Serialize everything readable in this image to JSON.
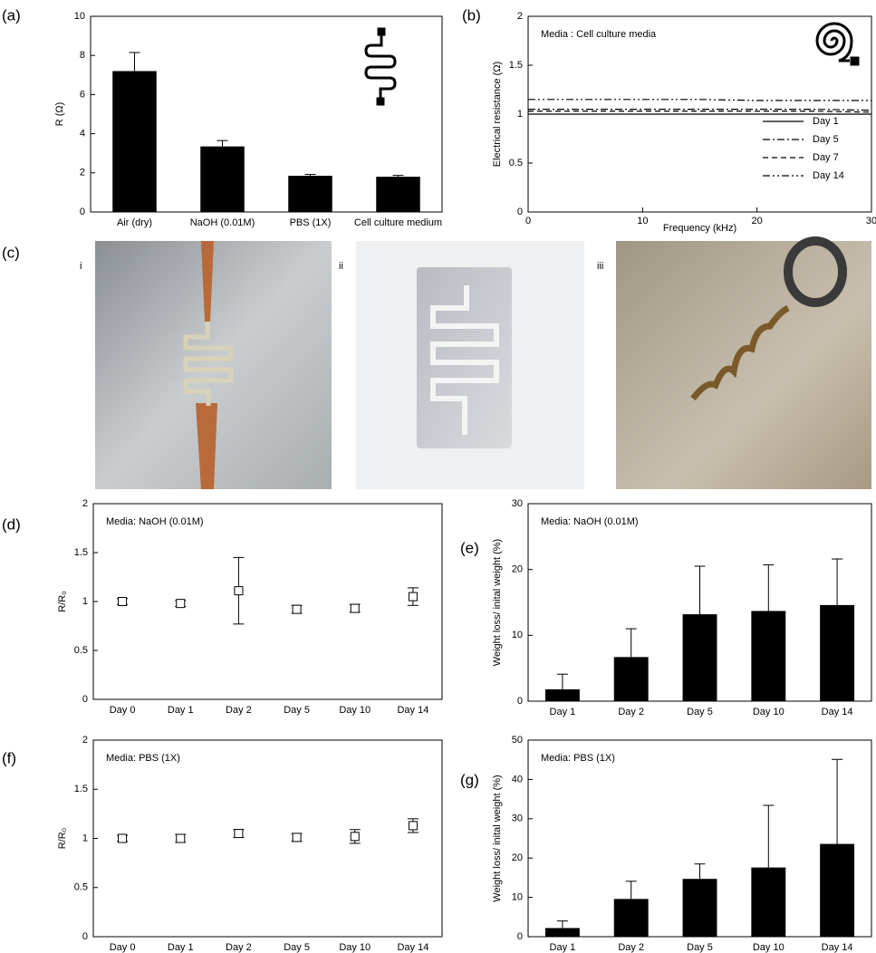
{
  "chart_data": [
    {
      "panel": "(a)",
      "type": "bar",
      "ylabel": "R (Ω)",
      "categories": [
        "Air (dry)",
        "NaOH (0.01M)",
        "PBS (1X)",
        "Cell culture medium"
      ],
      "values": [
        7.2,
        3.35,
        1.85,
        1.8
      ],
      "errors": [
        0.95,
        0.3,
        0.07,
        0.07
      ],
      "color": "#000000",
      "ylim": [
        0,
        10
      ],
      "yticks": [
        0,
        2,
        4,
        6,
        8,
        10
      ]
    },
    {
      "panel": "(b)",
      "type": "line",
      "annotation": "Media : Cell culture media",
      "xlabel": "Frequency (kHz)",
      "ylabel": "Electrical resistance (Ω)",
      "x": [
        0,
        5,
        10,
        15,
        20,
        25,
        30
      ],
      "xlim": [
        0,
        30
      ],
      "xticks": [
        0,
        10,
        20,
        30
      ],
      "ylim": [
        0,
        2
      ],
      "yticks": [
        0,
        0.5,
        1,
        1.5,
        2
      ],
      "legend": "lower right",
      "series": [
        {
          "name": "Day 1",
          "color": "#000000",
          "dash": "none",
          "values": [
            1.0,
            1.0,
            1.0,
            1.0,
            1.0,
            1.0,
            1.0
          ]
        },
        {
          "name": "Day 5",
          "color": "#000000",
          "dash": "8 3 2 3",
          "values": [
            1.05,
            1.05,
            1.05,
            1.05,
            1.05,
            1.05,
            1.04
          ]
        },
        {
          "name": "Day 7",
          "color": "#000000",
          "dash": "6 4",
          "values": [
            1.03,
            1.03,
            1.03,
            1.03,
            1.03,
            1.03,
            1.02
          ]
        },
        {
          "name": "Day 14",
          "color": "#000000",
          "dash": "8 3 2 3 2 3",
          "values": [
            1.15,
            1.15,
            1.15,
            1.15,
            1.14,
            1.14,
            1.14
          ]
        }
      ]
    },
    {
      "panel": "(d)",
      "type": "scatter",
      "annotation": "Media: NaOH (0.01M)",
      "ylabel": "R/R₀",
      "categories": [
        "Day 0",
        "Day 1",
        "Day 2",
        "Day 5",
        "Day 10",
        "Day 14"
      ],
      "values": [
        1.0,
        0.98,
        1.11,
        0.92,
        0.93,
        1.05
      ],
      "errors": [
        0.03,
        0.03,
        0.34,
        0.04,
        0.04,
        0.09
      ],
      "color": "#000000",
      "ylim": [
        0,
        2
      ],
      "yticks": [
        0,
        0.5,
        1,
        1.5,
        2
      ]
    },
    {
      "panel": "(e)",
      "type": "bar",
      "annotation": "Media: NaOH (0.01M)",
      "ylabel": "Weight loss/ inital weight (%)",
      "categories": [
        "Day 1",
        "Day 2",
        "Day 5",
        "Day 10",
        "Day 14"
      ],
      "values": [
        1.8,
        6.7,
        13.2,
        13.7,
        14.6
      ],
      "errors": [
        2.3,
        4.3,
        7.3,
        7.0,
        7.0
      ],
      "color": "#000000",
      "ylim": [
        0,
        30
      ],
      "yticks": [
        0,
        10,
        20,
        30
      ]
    },
    {
      "panel": "(f)",
      "type": "scatter",
      "annotation": "Media: PBS (1X)",
      "ylabel": "R/R₀",
      "categories": [
        "Day 0",
        "Day 1",
        "Day 2",
        "Day 5",
        "Day 10",
        "Day 14"
      ],
      "values": [
        1.0,
        1.0,
        1.05,
        1.01,
        1.02,
        1.13
      ],
      "errors": [
        0.03,
        0.04,
        0.04,
        0.04,
        0.07,
        0.07
      ],
      "color": "#000000",
      "ylim": [
        0,
        2
      ],
      "yticks": [
        0,
        0.5,
        1,
        1.5,
        2
      ]
    },
    {
      "panel": "(g)",
      "type": "bar",
      "annotation": "Media: PBS (1X)",
      "ylabel": "Weight loss/ inital weight (%)",
      "categories": [
        "Day 1",
        "Day 2",
        "Day 5",
        "Day 10",
        "Day 14"
      ],
      "values": [
        2.2,
        9.6,
        14.7,
        17.6,
        23.6
      ],
      "errors": [
        1.8,
        4.5,
        3.8,
        15.8,
        21.5
      ],
      "color": "#000000",
      "ylim": [
        0,
        50
      ],
      "yticks": [
        0,
        10,
        20,
        30,
        40,
        50
      ]
    }
  ],
  "photos": {
    "label": "(c)",
    "items": [
      "i",
      "ii",
      "iii"
    ]
  }
}
